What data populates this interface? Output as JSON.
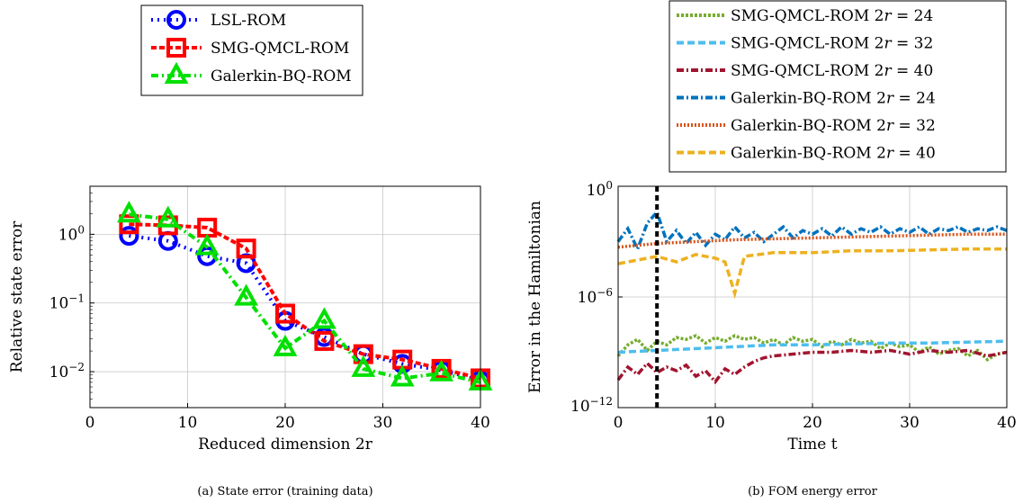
{
  "chart_data": [
    {
      "type": "line",
      "caption": "(a) State error (training data)",
      "xlabel": "Reduced dimension 2r",
      "ylabel": "Relative state error",
      "xlim": [
        0,
        40
      ],
      "ylim": [
        0.003,
        5
      ],
      "yscale": "log",
      "grid": true,
      "legend_position": "top, outside",
      "xticks": [
        "0",
        "10",
        "20",
        "30",
        "40"
      ],
      "yticks": [
        "10^0",
        "10^-1",
        "10^-2"
      ],
      "x": [
        4,
        8,
        12,
        16,
        20,
        24,
        28,
        32,
        36,
        40
      ],
      "series": [
        {
          "name": "LSL-ROM",
          "color": "#0000ff",
          "marker": "circle",
          "values": [
            0.95,
            0.8,
            0.48,
            0.38,
            0.055,
            0.032,
            0.018,
            0.013,
            0.0105,
            0.0075
          ]
        },
        {
          "name": "SMG-QMCL-ROM",
          "color": "#ff0000",
          "marker": "square",
          "values": [
            1.4,
            1.35,
            1.25,
            0.62,
            0.07,
            0.028,
            0.018,
            0.015,
            0.011,
            0.008
          ]
        },
        {
          "name": "Galerkin-BQ-ROM",
          "color": "#00e000",
          "marker": "triangle",
          "values": [
            1.95,
            1.65,
            0.65,
            0.12,
            0.022,
            0.055,
            0.011,
            0.008,
            0.0095,
            0.007
          ]
        }
      ]
    },
    {
      "type": "line",
      "caption": "(b) FOM energy error",
      "xlabel": "Time t",
      "ylabel": "Error in the Hamiltonian",
      "xlim": [
        0,
        40
      ],
      "ylim_exponent": [
        -12,
        0
      ],
      "yscale": "log",
      "grid": true,
      "legend_position": "top, outside",
      "xticks": [
        "0",
        "10",
        "20",
        "30",
        "40"
      ],
      "yticks": [
        "10^0",
        "10^-6",
        "10^-12"
      ],
      "vertical_line": {
        "x": 4,
        "style": "dashed",
        "color": "#000000"
      },
      "series": [
        {
          "name": "SMG-QMCL-ROM 2r = 24",
          "color": "#77ac30",
          "dash": "3,2",
          "log10_values": [
            [
              0,
              -9.2
            ],
            [
              1,
              -8.6
            ],
            [
              2,
              -8.3
            ],
            [
              3,
              -8.9
            ],
            [
              4,
              -8.4
            ],
            [
              5,
              -8.6
            ],
            [
              6,
              -8.2
            ],
            [
              7,
              -8.3
            ],
            [
              8,
              -8.1
            ],
            [
              9,
              -8.5
            ],
            [
              10,
              -8.2
            ],
            [
              11,
              -8.4
            ],
            [
              12,
              -8.1
            ],
            [
              13,
              -8.3
            ],
            [
              14,
              -8.2
            ],
            [
              15,
              -8.5
            ],
            [
              16,
              -8.3
            ],
            [
              17,
              -8.6
            ],
            [
              18,
              -8.2
            ],
            [
              19,
              -8.4
            ],
            [
              20,
              -8.3
            ],
            [
              21,
              -8.7
            ],
            [
              22,
              -8.4
            ],
            [
              23,
              -8.6
            ],
            [
              24,
              -8.3
            ],
            [
              25,
              -8.5
            ],
            [
              26,
              -8.4
            ],
            [
              27,
              -8.8
            ],
            [
              28,
              -8.5
            ],
            [
              29,
              -8.7
            ],
            [
              30,
              -8.6
            ],
            [
              31,
              -9.0
            ],
            [
              32,
              -8.7
            ],
            [
              33,
              -9.1
            ],
            [
              34,
              -8.9
            ],
            [
              35,
              -8.8
            ],
            [
              36,
              -9.2
            ],
            [
              37,
              -8.9
            ],
            [
              38,
              -9.4
            ],
            [
              39,
              -9.1
            ],
            [
              40,
              -9.0
            ]
          ]
        },
        {
          "name": "SMG-QMCL-ROM 2r = 32",
          "color": "#4dbeee",
          "dash": "8,4",
          "log10_values": [
            [
              0,
              -9.0
            ],
            [
              4,
              -8.9
            ],
            [
              8,
              -8.8
            ],
            [
              12,
              -8.7
            ],
            [
              16,
              -8.6
            ],
            [
              20,
              -8.6
            ],
            [
              24,
              -8.55
            ],
            [
              28,
              -8.5
            ],
            [
              32,
              -8.5
            ],
            [
              36,
              -8.45
            ],
            [
              40,
              -8.4
            ]
          ]
        },
        {
          "name": "SMG-QMCL-ROM 2r = 40",
          "color": "#a2142f",
          "dash": "8,3,2,3",
          "log10_values": [
            [
              0,
              -10.5
            ],
            [
              1,
              -9.8
            ],
            [
              2,
              -10.2
            ],
            [
              3,
              -9.6
            ],
            [
              4,
              -10.1
            ],
            [
              5,
              -9.8
            ],
            [
              6,
              -10.0
            ],
            [
              7,
              -9.7
            ],
            [
              8,
              -10.3
            ],
            [
              9,
              -10.0
            ],
            [
              10,
              -10.6
            ],
            [
              11,
              -9.9
            ],
            [
              12,
              -10.2
            ],
            [
              13,
              -9.8
            ],
            [
              14,
              -9.5
            ],
            [
              15,
              -9.3
            ],
            [
              16,
              -9.2
            ],
            [
              18,
              -9.1
            ],
            [
              20,
              -9.0
            ],
            [
              22,
              -9.0
            ],
            [
              24,
              -8.9
            ],
            [
              26,
              -9.0
            ],
            [
              28,
              -8.9
            ],
            [
              30,
              -9.1
            ],
            [
              32,
              -8.9
            ],
            [
              34,
              -9.0
            ],
            [
              36,
              -8.9
            ],
            [
              38,
              -9.2
            ],
            [
              40,
              -9.0
            ]
          ]
        },
        {
          "name": "Galerkin-BQ-ROM 2r = 24",
          "color": "#0072bd",
          "dash": "8,3,2,3",
          "log10_values": [
            [
              0,
              -3.0
            ],
            [
              1,
              -2.3
            ],
            [
              2,
              -3.4
            ],
            [
              3,
              -2.0
            ],
            [
              4,
              -1.4
            ],
            [
              5,
              -3.0
            ],
            [
              6,
              -2.4
            ],
            [
              7,
              -3.1
            ],
            [
              8,
              -2.5
            ],
            [
              9,
              -3.2
            ],
            [
              10,
              -2.6
            ],
            [
              11,
              -2.9
            ],
            [
              12,
              -2.2
            ],
            [
              13,
              -2.8
            ],
            [
              14,
              -2.5
            ],
            [
              15,
              -3.0
            ],
            [
              16,
              -2.6
            ],
            [
              17,
              -2.2
            ],
            [
              18,
              -2.8
            ],
            [
              19,
              -2.4
            ],
            [
              20,
              -2.6
            ],
            [
              21,
              -2.3
            ],
            [
              22,
              -2.7
            ],
            [
              23,
              -2.2
            ],
            [
              24,
              -2.6
            ],
            [
              25,
              -2.3
            ],
            [
              26,
              -2.5
            ],
            [
              27,
              -2.2
            ],
            [
              28,
              -2.6
            ],
            [
              29,
              -2.3
            ],
            [
              30,
              -2.5
            ],
            [
              31,
              -2.2
            ],
            [
              32,
              -2.6
            ],
            [
              33,
              -2.3
            ],
            [
              34,
              -2.4
            ],
            [
              35,
              -2.2
            ],
            [
              36,
              -2.5
            ],
            [
              37,
              -2.3
            ],
            [
              38,
              -2.4
            ],
            [
              39,
              -2.2
            ],
            [
              40,
              -2.4
            ]
          ]
        },
        {
          "name": "Galerkin-BQ-ROM 2r = 32",
          "color": "#d95319",
          "dash": "2,2",
          "log10_values": [
            [
              0,
              -3.3
            ],
            [
              4,
              -3.1
            ],
            [
              8,
              -3.0
            ],
            [
              12,
              -2.9
            ],
            [
              16,
              -2.85
            ],
            [
              20,
              -2.8
            ],
            [
              24,
              -2.75
            ],
            [
              28,
              -2.7
            ],
            [
              32,
              -2.65
            ],
            [
              36,
              -2.6
            ],
            [
              40,
              -2.6
            ]
          ]
        },
        {
          "name": "Galerkin-BQ-ROM 2r = 40",
          "color": "#edb120",
          "dash": "8,4",
          "log10_values": [
            [
              0,
              -4.2
            ],
            [
              2,
              -4.0
            ],
            [
              4,
              -3.8
            ],
            [
              6,
              -4.1
            ],
            [
              8,
              -3.7
            ],
            [
              10,
              -3.9
            ],
            [
              11,
              -4.1
            ],
            [
              12,
              -5.8
            ],
            [
              13,
              -3.8
            ],
            [
              16,
              -3.6
            ],
            [
              20,
              -3.6
            ],
            [
              24,
              -3.5
            ],
            [
              28,
              -3.5
            ],
            [
              32,
              -3.45
            ],
            [
              36,
              -3.4
            ],
            [
              40,
              -3.4
            ]
          ]
        }
      ]
    }
  ]
}
